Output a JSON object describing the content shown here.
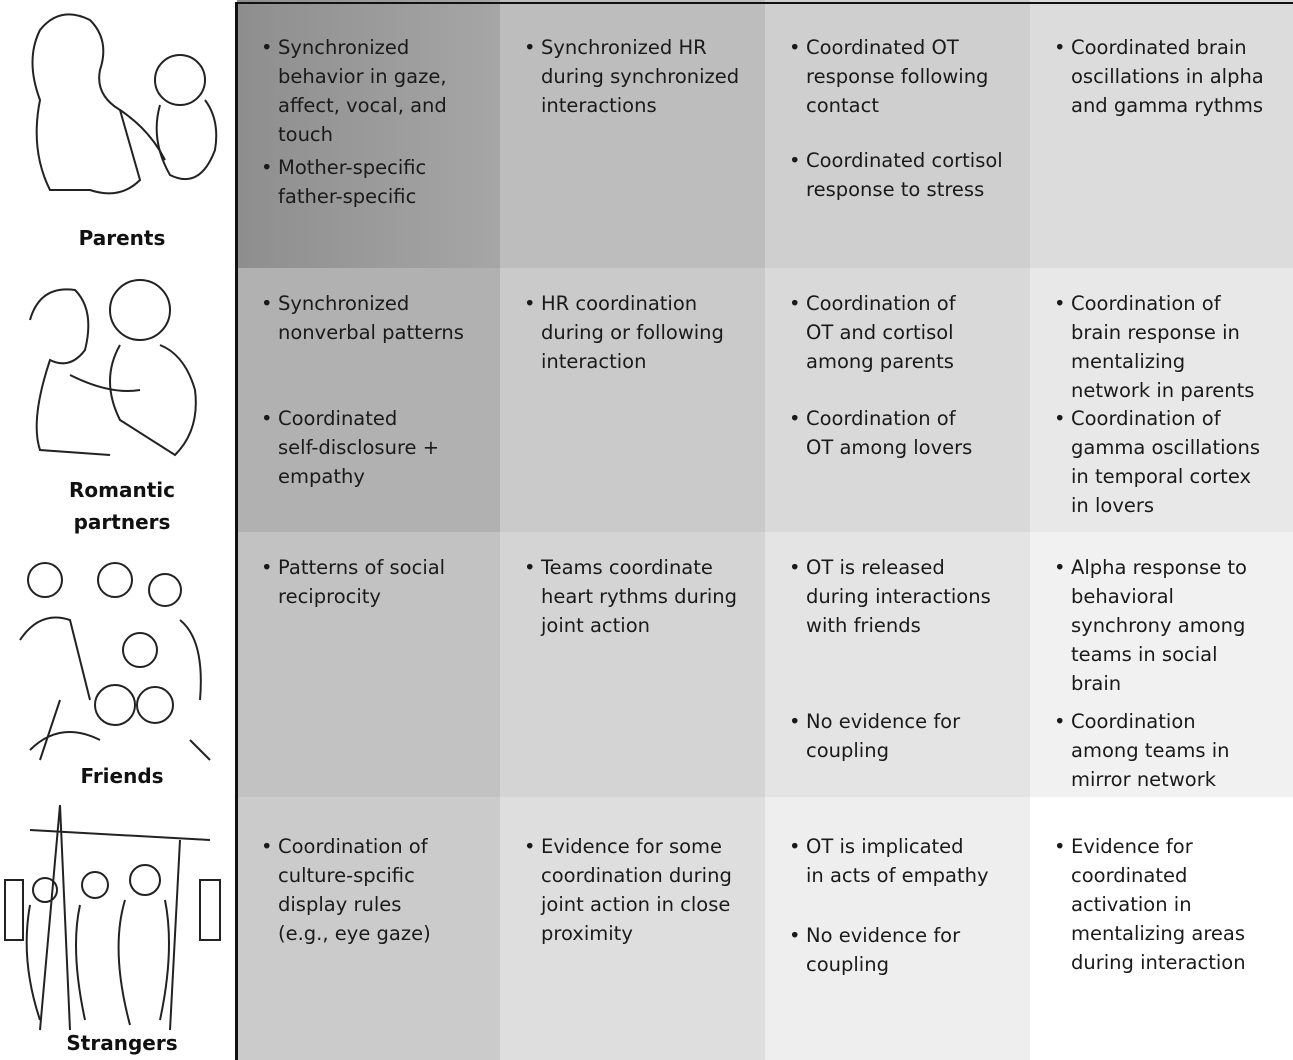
{
  "rows": [
    {
      "label": "Parents",
      "cells": [
        [
          [
            "Synchronized",
            "behavior in gaze,",
            "affect, vocal, and",
            "touch"
          ],
          [
            "Mother-specific",
            "father-specific"
          ]
        ],
        [
          [
            "Synchronized HR",
            "during synchronized",
            "interactions"
          ]
        ],
        [
          [
            "Coordinated OT",
            "response following",
            "contact"
          ],
          [
            "Coordinated cortisol",
            "response to stress"
          ]
        ],
        [
          [
            "Coordinated brain",
            "oscillations in alpha",
            "and gamma rythms"
          ]
        ]
      ]
    },
    {
      "label": "Romantic partners",
      "cells": [
        [
          [
            "Synchronized",
            "nonverbal patterns"
          ],
          [
            "Coordinated",
            "self-disclosure +",
            "empathy"
          ]
        ],
        [
          [
            "HR coordination",
            "during or following",
            "interaction"
          ]
        ],
        [
          [
            "Coordination of",
            "OT and cortisol",
            "among parents"
          ],
          [
            "Coordination of",
            "OT among lovers"
          ]
        ],
        [
          [
            "Coordination of",
            "brain response in",
            "mentalizing",
            "network in parents"
          ],
          [
            "Coordination of",
            "gamma oscillations",
            "in temporal cortex",
            "in lovers"
          ]
        ]
      ]
    },
    {
      "label": "Friends",
      "cells": [
        [
          [
            "Patterns of social",
            "reciprocity"
          ]
        ],
        [
          [
            "Teams coordinate",
            "heart rythms during",
            "joint action"
          ]
        ],
        [
          [
            "OT is released",
            "during interactions",
            "with friends"
          ],
          [
            "No evidence for",
            "coupling"
          ]
        ],
        [
          [
            "Alpha response to",
            "behavioral",
            "synchrony among",
            "teams in social",
            "brain"
          ],
          [
            "Coordination",
            "among teams in",
            "mirror network"
          ]
        ]
      ]
    },
    {
      "label": "Strangers",
      "cells": [
        [
          [
            "Coordination of",
            "culture-spcific",
            "display rules",
            "(e.g., eye gaze)"
          ]
        ],
        [
          [
            "Evidence for some",
            "coordination during",
            "joint action in close",
            "proximity"
          ]
        ],
        [
          [
            "OT is implicated",
            "in acts of empathy"
          ],
          [
            "No evidence for",
            "coupling"
          ]
        ],
        [
          [
            "Evidence for",
            "coordinated",
            "activation in",
            "mentalizing areas",
            "during interaction"
          ]
        ]
      ]
    }
  ]
}
